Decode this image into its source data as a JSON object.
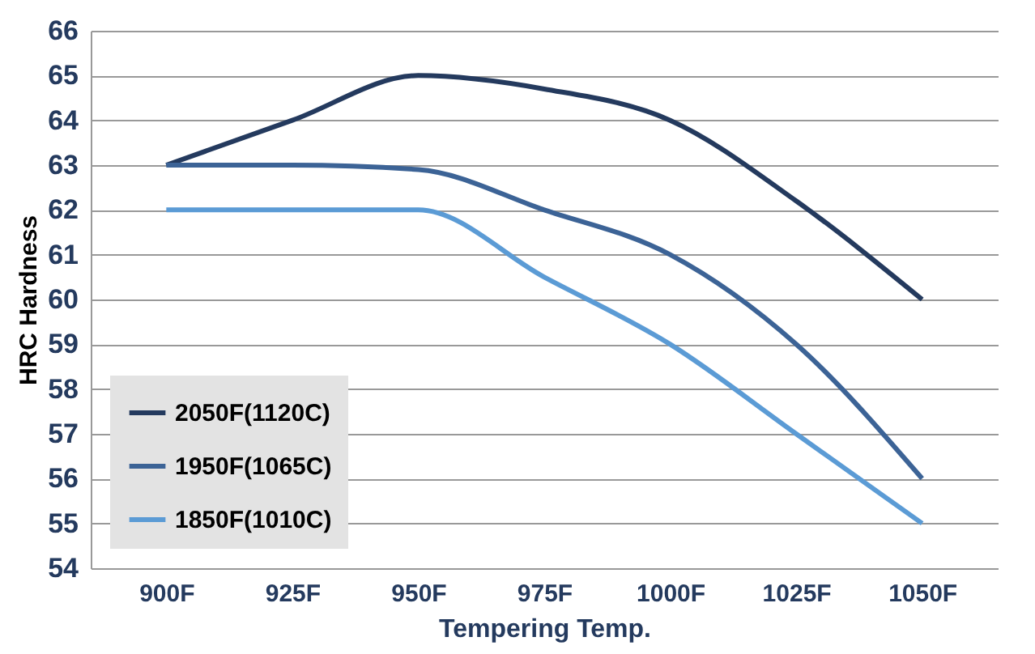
{
  "chart_data": {
    "type": "line",
    "xlabel": "Tempering Temp.",
    "ylabel": "HRC Hardness",
    "categories": [
      "900F",
      "925F",
      "950F",
      "975F",
      "1000F",
      "1025F",
      "1050F"
    ],
    "series": [
      {
        "name": "2050F(1120C)",
        "color": "#243a5e",
        "values": [
          63,
          64,
          65,
          64.7,
          64,
          62.2,
          60
        ]
      },
      {
        "name": "1950F(1065C)",
        "color": "#3c6396",
        "values": [
          63,
          63,
          62.9,
          62,
          61,
          59,
          56
        ]
      },
      {
        "name": "1850F(1010C)",
        "color": "#5b9bd5",
        "values": [
          62,
          62,
          62,
          60.5,
          59,
          57,
          55
        ]
      }
    ],
    "ylim": [
      54,
      66
    ],
    "yticks": [
      54,
      55,
      56,
      57,
      58,
      59,
      60,
      61,
      62,
      63,
      64,
      65,
      66
    ],
    "grid": "y",
    "legend": "bottom left",
    "marker": "none",
    "line_style": "solid"
  }
}
